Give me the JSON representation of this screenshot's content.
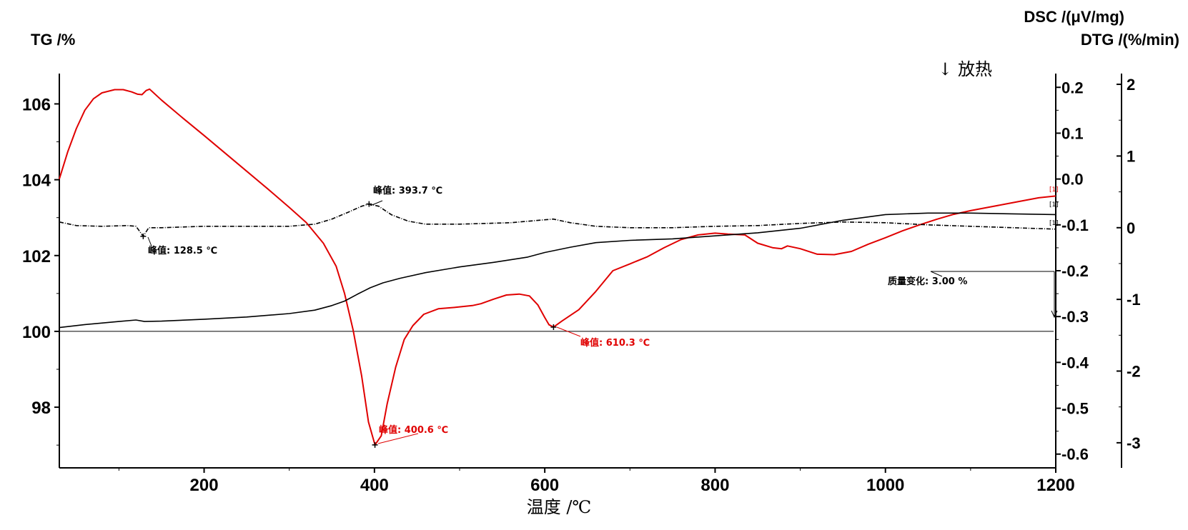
{
  "chart_data": {
    "type": "line",
    "x_axis": {
      "label": "温度 /℃",
      "range": [
        30,
        1200
      ],
      "ticks": [
        "200",
        "400",
        "600",
        "800",
        "1000",
        "1200"
      ]
    },
    "y_left": {
      "label": "TG /%",
      "range": [
        96.4,
        106.8
      ],
      "ticks": [
        "98",
        "100",
        "102",
        "104",
        "106"
      ]
    },
    "y_right_dsc": {
      "label": "DSC /(μV/mg)",
      "range": [
        -0.63,
        0.23
      ],
      "ticks": [
        "0.2",
        "0.1",
        "0.0",
        "-0.1",
        "-0.2",
        "-0.3",
        "-0.4",
        "-0.5",
        "-0.6"
      ]
    },
    "y_right_dtg": {
      "label": "DTG /(%/min)",
      "range": [
        -3.35,
        2.15
      ],
      "ticks": [
        "2",
        "1",
        "0",
        "-1",
        "-2",
        "-3"
      ]
    },
    "exotherm_label": "↓ 放热",
    "series": [
      {
        "axis": "dsc",
        "color": "#e00000",
        "points": [
          [
            30,
            0.0
          ],
          [
            40,
            0.06
          ],
          [
            50,
            0.11
          ],
          [
            60,
            0.15
          ],
          [
            70,
            0.175
          ],
          [
            80,
            0.188
          ],
          [
            95,
            0.195
          ],
          [
            105,
            0.195
          ],
          [
            115,
            0.19
          ],
          [
            122,
            0.185
          ],
          [
            127,
            0.184
          ],
          [
            132,
            0.193
          ],
          [
            136,
            0.196
          ],
          [
            150,
            0.172
          ],
          [
            175,
            0.133
          ],
          [
            200,
            0.095
          ],
          [
            225,
            0.056
          ],
          [
            250,
            0.017
          ],
          [
            275,
            -0.022
          ],
          [
            300,
            -0.062
          ],
          [
            320,
            -0.095
          ],
          [
            340,
            -0.14
          ],
          [
            355,
            -0.19
          ],
          [
            365,
            -0.25
          ],
          [
            375,
            -0.33
          ],
          [
            385,
            -0.43
          ],
          [
            393,
            -0.53
          ],
          [
            400.6,
            -0.58
          ],
          [
            408,
            -0.56
          ],
          [
            415,
            -0.49
          ],
          [
            425,
            -0.41
          ],
          [
            435,
            -0.35
          ],
          [
            445,
            -0.32
          ],
          [
            458,
            -0.295
          ],
          [
            475,
            -0.283
          ],
          [
            495,
            -0.28
          ],
          [
            515,
            -0.276
          ],
          [
            525,
            -0.272
          ],
          [
            540,
            -0.262
          ],
          [
            555,
            -0.253
          ],
          [
            570,
            -0.251
          ],
          [
            582,
            -0.255
          ],
          [
            592,
            -0.275
          ],
          [
            600,
            -0.302
          ],
          [
            605,
            -0.318
          ],
          [
            610.3,
            -0.323
          ],
          [
            620,
            -0.31
          ],
          [
            640,
            -0.285
          ],
          [
            660,
            -0.245
          ],
          [
            680,
            -0.2
          ],
          [
            700,
            -0.185
          ],
          [
            720,
            -0.17
          ],
          [
            740,
            -0.15
          ],
          [
            760,
            -0.132
          ],
          [
            780,
            -0.122
          ],
          [
            800,
            -0.118
          ],
          [
            815,
            -0.12
          ],
          [
            835,
            -0.122
          ],
          [
            850,
            -0.14
          ],
          [
            868,
            -0.15
          ],
          [
            878,
            -0.152
          ],
          [
            885,
            -0.146
          ],
          [
            900,
            -0.152
          ],
          [
            920,
            -0.164
          ],
          [
            940,
            -0.165
          ],
          [
            960,
            -0.158
          ],
          [
            980,
            -0.142
          ],
          [
            1000,
            -0.128
          ],
          [
            1020,
            -0.113
          ],
          [
            1040,
            -0.1
          ],
          [
            1060,
            -0.088
          ],
          [
            1080,
            -0.077
          ],
          [
            1100,
            -0.069
          ],
          [
            1120,
            -0.062
          ],
          [
            1140,
            -0.055
          ],
          [
            1160,
            -0.048
          ],
          [
            1180,
            -0.041
          ],
          [
            1200,
            -0.037
          ]
        ]
      },
      {
        "axis": "tg",
        "color": "#000000",
        "points": [
          [
            30,
            100.1
          ],
          [
            60,
            100.18
          ],
          [
            100,
            100.26
          ],
          [
            120,
            100.3
          ],
          [
            130,
            100.26
          ],
          [
            150,
            100.27
          ],
          [
            200,
            100.32
          ],
          [
            250,
            100.38
          ],
          [
            300,
            100.47
          ],
          [
            330,
            100.56
          ],
          [
            350,
            100.68
          ],
          [
            365,
            100.8
          ],
          [
            380,
            100.98
          ],
          [
            395,
            101.15
          ],
          [
            410,
            101.28
          ],
          [
            430,
            101.4
          ],
          [
            460,
            101.55
          ],
          [
            500,
            101.7
          ],
          [
            540,
            101.82
          ],
          [
            580,
            101.96
          ],
          [
            600,
            102.08
          ],
          [
            630,
            102.22
          ],
          [
            660,
            102.34
          ],
          [
            700,
            102.4
          ],
          [
            750,
            102.44
          ],
          [
            800,
            102.52
          ],
          [
            850,
            102.6
          ],
          [
            900,
            102.72
          ],
          [
            950,
            102.93
          ],
          [
            1000,
            103.08
          ],
          [
            1050,
            103.12
          ],
          [
            1100,
            103.12
          ],
          [
            1150,
            103.1
          ],
          [
            1200,
            103.08
          ]
        ]
      },
      {
        "axis": "dtg",
        "color": "#000000",
        "dashed": true,
        "points": [
          [
            30,
            0.08
          ],
          [
            50,
            0.03
          ],
          [
            80,
            0.02
          ],
          [
            110,
            0.03
          ],
          [
            120,
            0.02
          ],
          [
            128.5,
            -0.12
          ],
          [
            135,
            0.0
          ],
          [
            150,
            0.0
          ],
          [
            200,
            0.02
          ],
          [
            250,
            0.02
          ],
          [
            300,
            0.02
          ],
          [
            330,
            0.05
          ],
          [
            350,
            0.12
          ],
          [
            370,
            0.22
          ],
          [
            385,
            0.3
          ],
          [
            393.7,
            0.33
          ],
          [
            405,
            0.3
          ],
          [
            420,
            0.18
          ],
          [
            440,
            0.09
          ],
          [
            460,
            0.05
          ],
          [
            500,
            0.05
          ],
          [
            560,
            0.07
          ],
          [
            600,
            0.11
          ],
          [
            610,
            0.12
          ],
          [
            630,
            0.07
          ],
          [
            660,
            0.02
          ],
          [
            700,
            0.0
          ],
          [
            750,
            0.0
          ],
          [
            800,
            0.02
          ],
          [
            850,
            0.03
          ],
          [
            900,
            0.06
          ],
          [
            950,
            0.08
          ],
          [
            1000,
            0.07
          ],
          [
            1050,
            0.04
          ],
          [
            1100,
            0.02
          ],
          [
            1150,
            0.0
          ],
          [
            1200,
            -0.02
          ]
        ]
      }
    ],
    "reference_line": {
      "axis": "tg",
      "y": 100.0
    },
    "annotations": [
      {
        "text": "峰值: 393.7 ℃",
        "color": "#000000"
      },
      {
        "text": "峰值: 128.5 ℃",
        "color": "#000000"
      },
      {
        "text": "峰值: 400.6 ℃",
        "color": "#e00000"
      },
      {
        "text": "峰值: 610.3 ℃",
        "color": "#e00000"
      },
      {
        "text": "质量变化: 3.00 %",
        "color": "#000000"
      }
    ],
    "end_markers": [
      "[1]",
      "[1]",
      "[1]"
    ]
  }
}
